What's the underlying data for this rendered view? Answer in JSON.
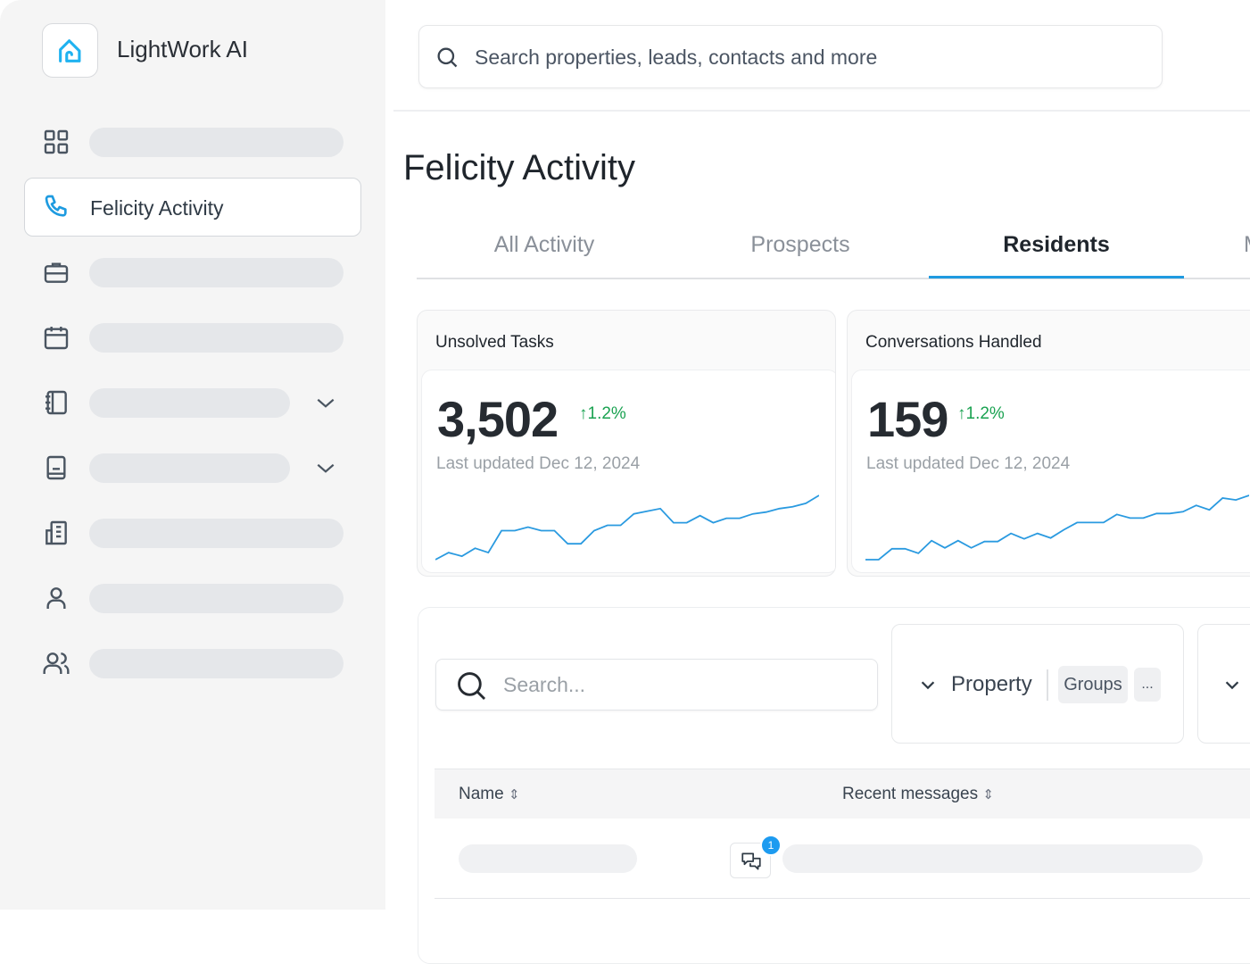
{
  "app": {
    "brand": "LightWork AI",
    "icon": "house-icon",
    "accent": "#1fb2f0"
  },
  "sidebar": {
    "active_label": "Felicity Activity",
    "items": [
      {
        "icon": "grid-icon"
      },
      {
        "icon": "phone-icon",
        "label": "Felicity Activity"
      },
      {
        "icon": "briefcase-icon"
      },
      {
        "icon": "calendar-icon"
      },
      {
        "icon": "notebook-icon",
        "expandable": true
      },
      {
        "icon": "book-icon",
        "expandable": true
      },
      {
        "icon": "building-icon"
      },
      {
        "icon": "user-icon"
      },
      {
        "icon": "users-icon"
      }
    ]
  },
  "search": {
    "placeholder": "Search properties, leads, contacts and more"
  },
  "page": {
    "title": "Felicity Activity"
  },
  "tabs": [
    {
      "label": "All Activity"
    },
    {
      "label": "Prospects"
    },
    {
      "label": "Residents",
      "active": true
    },
    {
      "label": "M"
    }
  ],
  "cards": [
    {
      "title": "Unsolved Tasks",
      "value": "3,502",
      "delta": "1.2%",
      "updated": "Last updated Dec 12, 2024",
      "trend": [
        0,
        8,
        4,
        13,
        8,
        33,
        33,
        37,
        33,
        33,
        18,
        18,
        33,
        39,
        39,
        52,
        55,
        58,
        42,
        42,
        50,
        42,
        47,
        47,
        52,
        54,
        58,
        60,
        64,
        73
      ]
    },
    {
      "title": "Conversations Handled",
      "value": "159",
      "delta": "1.2%",
      "updated": "Last updated Dec 12, 2024",
      "trend": [
        2,
        2,
        14,
        14,
        9,
        23,
        15,
        23,
        15,
        22,
        22,
        31,
        25,
        31,
        26,
        35,
        43,
        43,
        43,
        52,
        48,
        48,
        53,
        53,
        55,
        62,
        57,
        70,
        68,
        73
      ]
    }
  ],
  "filters": {
    "search_placeholder": "Search...",
    "property_label": "Property",
    "chip_groups": "Groups",
    "chip_more": "..."
  },
  "table": {
    "columns": [
      "Name",
      "Recent messages"
    ],
    "rows": [
      {
        "unread": "1"
      }
    ]
  },
  "colors": {
    "line": "#2a9ae0",
    "positive": "#1aa251",
    "tab_underline": "#1f9ae0",
    "badge": "#1d9bf0"
  }
}
